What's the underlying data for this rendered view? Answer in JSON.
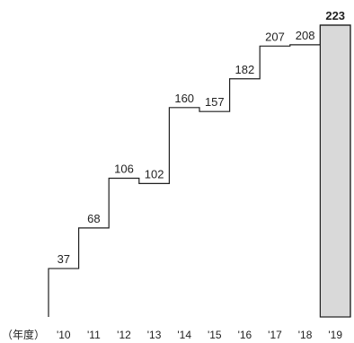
{
  "chart_data": {
    "type": "line",
    "style": "step",
    "title": "",
    "xlabel": "（年度）",
    "ylabel": "",
    "categories": [
      "'10",
      "'11",
      "'12",
      "'13",
      "'14",
      "'15",
      "'16",
      "'17",
      "'18",
      "'19"
    ],
    "values": [
      37,
      68,
      106,
      102,
      160,
      157,
      182,
      207,
      208,
      223
    ],
    "value_labels": [
      "37",
      "68",
      "106",
      "102",
      "160",
      "157",
      "182",
      "207",
      "208",
      "223"
    ],
    "highlight_index": 9,
    "highlight_color": "#d9d9d9",
    "line_color": "#1f1f1f",
    "ylim": [
      0,
      230
    ],
    "grid": false,
    "legend": "none"
  }
}
